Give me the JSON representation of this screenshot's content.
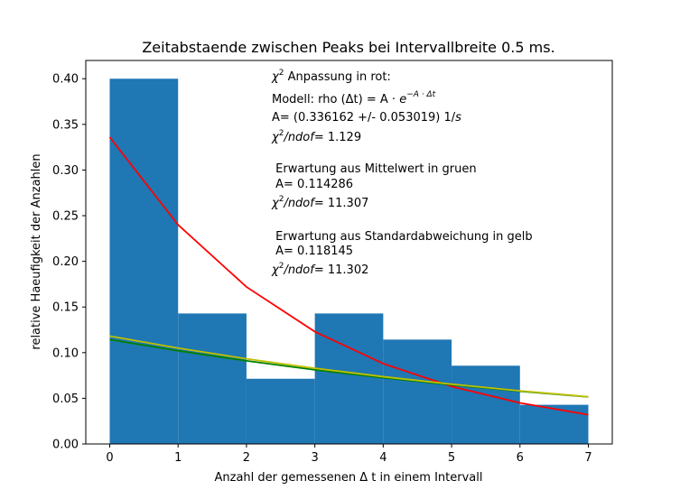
{
  "chart_data": {
    "type": "bar",
    "title": "Zeitabstaende zwischen Peaks bei Intervallbreite 0.5 ms.",
    "xlabel": "Anzahl der gemessenen Δ t in einem Intervall",
    "ylabel": "relative Haeufigkeit der Anzahlen",
    "xlim": [
      -0.35,
      7.35
    ],
    "ylim": [
      0.0,
      0.42
    ],
    "grid": false,
    "x_ticks": [
      0,
      1,
      2,
      3,
      4,
      5,
      6,
      7
    ],
    "y_ticks": [
      0.0,
      0.05,
      0.1,
      0.15,
      0.2,
      0.25,
      0.3,
      0.35,
      0.4
    ],
    "y_tick_labels": [
      "0.00",
      "0.05",
      "0.10",
      "0.15",
      "0.20",
      "0.25",
      "0.30",
      "0.35",
      "0.40"
    ],
    "histogram": {
      "color": "#1f77b4",
      "bins": [
        {
          "start": 0,
          "end": 1,
          "value": 0.4
        },
        {
          "start": 1,
          "end": 2,
          "value": 0.1429
        },
        {
          "start": 2,
          "end": 3,
          "value": 0.0714
        },
        {
          "start": 3,
          "end": 4,
          "value": 0.1429
        },
        {
          "start": 4,
          "end": 5,
          "value": 0.1143
        },
        {
          "start": 5,
          "end": 6,
          "value": 0.0857
        },
        {
          "start": 6,
          "end": 7,
          "value": 0.0429
        }
      ]
    },
    "series": [
      {
        "color": "#ff0000",
        "model": "exp",
        "A": 0.336162,
        "x": [
          0,
          1,
          2,
          3,
          4,
          5,
          6,
          7
        ],
        "values": [
          0.336,
          0.24,
          0.172,
          0.123,
          0.088,
          0.063,
          0.045,
          0.032
        ]
      },
      {
        "color": "#008000",
        "model": "exp",
        "A": 0.114286,
        "x": [
          0,
          1,
          2,
          3,
          4,
          5,
          6,
          7
        ],
        "values": [
          0.1143,
          0.102,
          0.091,
          0.0812,
          0.0725,
          0.0647,
          0.0577,
          0.0515
        ]
      },
      {
        "color": "#bfbf00",
        "model": "exp",
        "A": 0.118145,
        "x": [
          0,
          1,
          2,
          3,
          4,
          5,
          6,
          7
        ],
        "values": [
          0.1181,
          0.105,
          0.0933,
          0.0829,
          0.0737,
          0.0655,
          0.0582,
          0.0517
        ]
      }
    ],
    "annotation": {
      "line1_chi": "χ",
      "line1_sup": "2",
      "line1_rest": " Anpassung in rot:",
      "line2_pre": "Modell: rho (Δt) = A · ",
      "line2_e": "e",
      "line2_sup": "−A · Δt",
      "line3_pre": " A= (0.336162 +/- 0.053019) 1/",
      "line3_unit": "s",
      "line4_chi": "χ",
      "line4_sup": "2",
      "line4_ndof": "/ndof",
      "line4_val": "= 1.129",
      "line5": " Erwartung aus Mittelwert in gruen",
      "line6": " A= 0.114286",
      "line7_chi": "χ",
      "line7_sup": "2",
      "line7_ndof": "/ndof",
      "line7_val": "= 11.307",
      "line8": " Erwartung aus Standardabweichung in gelb",
      "line9": " A= 0.118145",
      "line10_chi": "χ",
      "line10_sup": "2",
      "line10_ndof": "/ndof",
      "line10_val": "= 11.302"
    }
  }
}
